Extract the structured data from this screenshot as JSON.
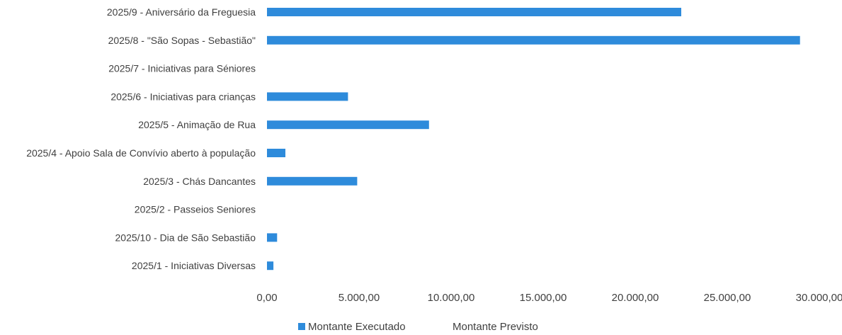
{
  "chart_data": {
    "type": "bar",
    "orientation": "horizontal",
    "categories": [
      "2025/9 - Aniversário da Freguesia",
      "2025/8 - \"São Sopas - Sebastião\"",
      "2025/7 - Iniciativas para Séniores",
      "2025/6 - Iniciativas para crianças",
      "2025/5 - Animação de Rua",
      "2025/4 - Apoio Sala de Convívio aberto à população",
      "2025/3 - Chás Dancantes",
      "2025/2 - Passeios Seniores",
      "2025/10 - Dia de São Sebastião",
      "2025/1 - Iniciativas Diversas"
    ],
    "series": [
      {
        "name": "Montante Executado",
        "color": "#2E8BDB",
        "values": [
          22500,
          28950,
          0,
          4400,
          8800,
          1000,
          4900,
          0,
          550,
          350
        ]
      },
      {
        "name": "Montante Previsto",
        "color": "#FFFFFF",
        "values": [
          null,
          null,
          null,
          null,
          null,
          null,
          null,
          null,
          null,
          null
        ]
      }
    ],
    "xlim": [
      0,
      30000
    ],
    "x_ticks": [
      0,
      5000,
      10000,
      15000,
      20000,
      25000,
      30000
    ],
    "x_tick_labels": [
      "0,00",
      "5.000,00",
      "10.000,00",
      "15.000,00",
      "20.000,00",
      "25.000,00",
      "30.000,00"
    ],
    "title": "",
    "xlabel": "",
    "ylabel": "",
    "grid": false,
    "legend_position": "bottom"
  }
}
